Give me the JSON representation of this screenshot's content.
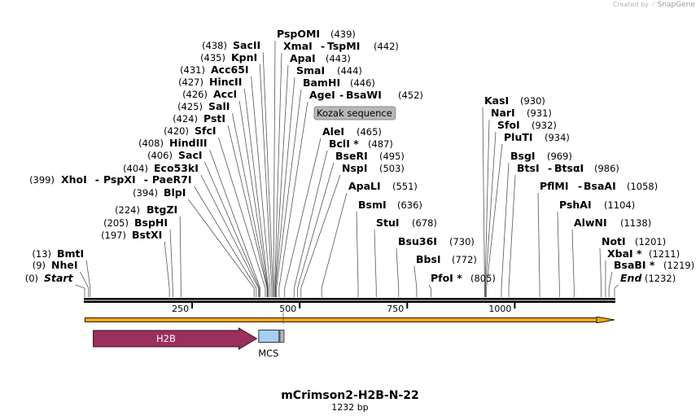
{
  "brand": {
    "prefix": "Created by",
    "name": "SnapGene"
  },
  "plasmid": {
    "name": "mCrimson2-H2B-N-22",
    "length_label": "1232 bp",
    "length": 1232
  },
  "axis": {
    "ticks": [
      250,
      500,
      750,
      1000
    ]
  },
  "features": {
    "h2b": {
      "label": "H2B",
      "start": 20,
      "end": 400,
      "color": "#9b2f5e"
    },
    "mcs": {
      "label": "MCS",
      "start": 399,
      "end": 452,
      "color": "#a6cff5"
    },
    "kozak": {
      "label": "Kozak sequence",
      "start": 454,
      "end": 465,
      "color": "#b7b7b7"
    },
    "orf_arrow": {
      "start": 1,
      "end": 1232,
      "color": "#f2a623"
    }
  },
  "sites": [
    {
      "group": "left",
      "pos": 0,
      "labels": [
        "(0)",
        "Start"
      ],
      "italic": true
    },
    {
      "group": "left",
      "pos": 9,
      "labels": [
        "(9)",
        "NheI"
      ]
    },
    {
      "group": "left",
      "pos": 13,
      "labels": [
        "(13)",
        "BmtI"
      ]
    },
    {
      "group": "low",
      "pos": 197,
      "labels": [
        "(197)",
        "BstXI"
      ]
    },
    {
      "group": "low",
      "pos": 205,
      "labels": [
        "(205)",
        "BspHI"
      ]
    },
    {
      "group": "low",
      "pos": 224,
      "labels": [
        "(224)",
        "BtgZI"
      ]
    },
    {
      "group": "cluster",
      "pos": 394,
      "labels": [
        "(394)",
        "BlpI"
      ]
    },
    {
      "group": "cluster",
      "pos": 399,
      "labels": [
        "(399)",
        "XhoI",
        "-",
        "PspXI",
        "-",
        "PaeR7I"
      ]
    },
    {
      "group": "cluster",
      "pos": 404,
      "labels": [
        "(404)",
        "Eco53kI"
      ]
    },
    {
      "group": "cluster",
      "pos": 406,
      "labels": [
        "(406)",
        "SacI"
      ]
    },
    {
      "group": "cluster",
      "pos": 408,
      "labels": [
        "(408)",
        "HindIII"
      ]
    },
    {
      "group": "cluster",
      "pos": 420,
      "labels": [
        "(420)",
        "SfcI"
      ]
    },
    {
      "group": "cluster",
      "pos": 424,
      "labels": [
        "(424)",
        "PstI"
      ]
    },
    {
      "group": "cluster",
      "pos": 425,
      "labels": [
        "(425)",
        "SalI"
      ]
    },
    {
      "group": "cluster",
      "pos": 426,
      "labels": [
        "(426)",
        "AccI"
      ]
    },
    {
      "group": "cluster",
      "pos": 427,
      "labels": [
        "(427)",
        "HincII"
      ]
    },
    {
      "group": "cluster",
      "pos": 431,
      "labels": [
        "(431)",
        "Acc65I"
      ]
    },
    {
      "group": "cluster",
      "pos": 435,
      "labels": [
        "(435)",
        "KpnI"
      ]
    },
    {
      "group": "cluster",
      "pos": 438,
      "labels": [
        "(438)",
        "SacII"
      ]
    },
    {
      "group": "right",
      "pos": 439,
      "labels": [
        "PspOMI",
        "(439)"
      ]
    },
    {
      "group": "right",
      "pos": 442,
      "labels": [
        "XmaI",
        "-",
        "TspMI",
        "(442)"
      ]
    },
    {
      "group": "right",
      "pos": 443,
      "labels": [
        "ApaI",
        "(443)"
      ]
    },
    {
      "group": "right",
      "pos": 444,
      "labels": [
        "SmaI",
        "(444)"
      ]
    },
    {
      "group": "right",
      "pos": 446,
      "labels": [
        "BamHI",
        "(446)"
      ]
    },
    {
      "group": "right",
      "pos": 452,
      "labels": [
        "AgeI",
        "-",
        "BsaWI",
        "(452)"
      ]
    },
    {
      "group": "right",
      "pos": 465,
      "labels": [
        "AleI",
        "(465)"
      ]
    },
    {
      "group": "right",
      "pos": 487,
      "labels": [
        "BclI *",
        "(487)"
      ]
    },
    {
      "group": "right",
      "pos": 495,
      "labels": [
        "BseRI",
        "(495)"
      ]
    },
    {
      "group": "right",
      "pos": 503,
      "labels": [
        "NspI",
        "(503)"
      ]
    },
    {
      "group": "right",
      "pos": 551,
      "labels": [
        "ApaLI",
        "(551)"
      ]
    },
    {
      "group": "right",
      "pos": 636,
      "labels": [
        "BsmI",
        "(636)"
      ]
    },
    {
      "group": "right",
      "pos": 678,
      "labels": [
        "StuI",
        "(678)"
      ]
    },
    {
      "group": "right",
      "pos": 730,
      "labels": [
        "Bsu36I",
        "(730)"
      ]
    },
    {
      "group": "right",
      "pos": 772,
      "labels": [
        "BbsI",
        "(772)"
      ]
    },
    {
      "group": "right",
      "pos": 805,
      "labels": [
        "PfoI *",
        "(805)"
      ]
    },
    {
      "group": "right",
      "pos": 930,
      "labels": [
        "KasI",
        "(930)"
      ]
    },
    {
      "group": "right",
      "pos": 931,
      "labels": [
        "NarI",
        "(931)"
      ]
    },
    {
      "group": "right",
      "pos": 932,
      "labels": [
        "SfoI",
        "(932)"
      ]
    },
    {
      "group": "right",
      "pos": 934,
      "labels": [
        "PluTI",
        "(934)"
      ]
    },
    {
      "group": "right",
      "pos": 969,
      "labels": [
        "BsgI",
        "(969)"
      ]
    },
    {
      "group": "right",
      "pos": 986,
      "labels": [
        "BtsI",
        "-",
        "BtsαI",
        "(986)"
      ]
    },
    {
      "group": "right",
      "pos": 1058,
      "labels": [
        "PflMI",
        "-",
        "BsaAI",
        "(1058)"
      ]
    },
    {
      "group": "right",
      "pos": 1104,
      "labels": [
        "PshAI",
        "(1104)"
      ]
    },
    {
      "group": "right",
      "pos": 1138,
      "labels": [
        "AlwNI",
        "(1138)"
      ]
    },
    {
      "group": "right",
      "pos": 1201,
      "labels": [
        "NotI",
        "(1201)"
      ]
    },
    {
      "group": "right",
      "pos": 1211,
      "labels": [
        "XbaI *",
        "(1211)"
      ]
    },
    {
      "group": "right",
      "pos": 1219,
      "labels": [
        "BsaBI *",
        "(1219)"
      ]
    },
    {
      "group": "right",
      "pos": 1232,
      "labels": [
        "End",
        "(1232)"
      ],
      "italic": true
    }
  ]
}
